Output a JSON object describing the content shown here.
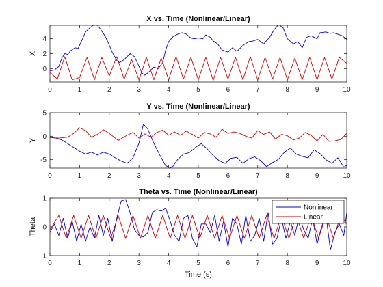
{
  "chart_data": [
    {
      "type": "line",
      "title": "X vs. Time (Nonlinear/Linear)",
      "xlabel": "",
      "ylabel": "X",
      "xlim": [
        0,
        10
      ],
      "ylim": [
        -1.8,
        5.8
      ],
      "xticks": [
        0,
        1,
        2,
        3,
        4,
        5,
        6,
        7,
        8,
        9,
        10
      ],
      "xtick_labels": [
        "0",
        "1",
        "2",
        "3",
        "4",
        "5",
        "6",
        "7",
        "8",
        "9",
        "10"
      ],
      "yticks": [
        0,
        2,
        4
      ],
      "ytick_labels": [
        "0",
        "2",
        "4"
      ],
      "grid": false,
      "series": [
        {
          "color": "#0000cc",
          "x": [
            0,
            0.15,
            0.3,
            0.4,
            0.5,
            0.6,
            0.7,
            0.85,
            0.95,
            1.1,
            1.2,
            1.35,
            1.5,
            1.6,
            1.7,
            1.85,
            1.95,
            2.1,
            2.25,
            2.35,
            2.5,
            2.7,
            2.85,
            3.0,
            3.1,
            3.2,
            3.35,
            3.5,
            3.65,
            3.8,
            3.9,
            4.0,
            4.15,
            4.3,
            4.45,
            4.6,
            4.75,
            4.85,
            5.0,
            5.15,
            5.25,
            5.4,
            5.5,
            5.65,
            5.8,
            6.0,
            6.15,
            6.3,
            6.5,
            6.7,
            6.85,
            7.0,
            7.2,
            7.4,
            7.55,
            7.7,
            7.85,
            8.0,
            8.2,
            8.35,
            8.5,
            8.65,
            8.8,
            9.0,
            9.1,
            9.3,
            9.45,
            9.55,
            9.7,
            9.85,
            10
          ],
          "y": [
            -0.3,
            -0.2,
            0.3,
            1.4,
            2.0,
            1.9,
            2.4,
            2.8,
            2.7,
            4.0,
            4.9,
            5.5,
            5.9,
            5.8,
            5.3,
            4.4,
            3.6,
            2.2,
            1.1,
            0.8,
            1.2,
            2.0,
            1.6,
            0.3,
            -0.6,
            -0.9,
            -0.4,
            0.2,
            0.0,
            0.8,
            2.5,
            3.6,
            4.3,
            4.6,
            4.8,
            4.6,
            4.1,
            4.0,
            4.1,
            4.0,
            4.5,
            4.2,
            3.7,
            3.3,
            2.5,
            2.2,
            2.8,
            2.3,
            3.1,
            3.6,
            3.7,
            3.9,
            3.3,
            4.2,
            5.2,
            5.9,
            5.5,
            4.0,
            3.3,
            3.6,
            2.8,
            4.2,
            4.4,
            4.0,
            4.8,
            4.9,
            4.7,
            4.8,
            4.6,
            4.4,
            3.9
          ]
        },
        {
          "color": "#cc0000",
          "x": [
            0,
            0.25,
            0.5,
            0.75,
            1.0,
            1.25,
            1.5,
            1.75,
            2.0,
            2.25,
            2.5,
            2.75,
            3.0,
            3.25,
            3.5,
            3.75,
            4.0,
            4.25,
            4.5,
            4.75,
            5.0,
            5.25,
            5.5,
            5.75,
            6.0,
            6.25,
            6.5,
            6.75,
            7.0,
            7.25,
            7.5,
            7.75,
            8.0,
            8.25,
            8.5,
            8.75,
            9.0,
            9.25,
            9.5,
            9.75,
            10
          ],
          "y": [
            -0.5,
            -1.4,
            1.6,
            -1.5,
            -1.2,
            1.5,
            -1.5,
            1.5,
            -1.0,
            1.6,
            -1.4,
            1.2,
            -1.5,
            1.5,
            -1.5,
            1.4,
            -1.5,
            1.6,
            -1.4,
            1.5,
            -1.5,
            1.5,
            -1.6,
            1.5,
            -1.4,
            1.5,
            -1.5,
            1.6,
            -1.5,
            1.5,
            -1.4,
            1.5,
            -1.5,
            1.4,
            -1.5,
            1.5,
            -1.5,
            1.5,
            -1.4,
            1.5,
            0.7
          ]
        }
      ]
    },
    {
      "type": "line",
      "title": "Y vs. Time (Nonlinear/Linear)",
      "xlabel": "",
      "ylabel": "Y",
      "xlim": [
        0,
        10
      ],
      "ylim": [
        -6.8,
        5
      ],
      "xticks": [
        0,
        1,
        2,
        3,
        4,
        5,
        6,
        7,
        8,
        9,
        10
      ],
      "xtick_labels": [
        "0",
        "1",
        "2",
        "3",
        "4",
        "5",
        "6",
        "7",
        "8",
        "9",
        "10"
      ],
      "yticks": [
        -5,
        0,
        5
      ],
      "ytick_labels": [
        "-5",
        "0",
        "5"
      ],
      "grid": false,
      "series": [
        {
          "color": "#0000cc",
          "x": [
            0,
            0.2,
            0.4,
            0.6,
            0.8,
            1.0,
            1.2,
            1.4,
            1.6,
            1.8,
            2.0,
            2.2,
            2.4,
            2.6,
            2.8,
            3.0,
            3.15,
            3.3,
            3.5,
            3.7,
            3.9,
            4.1,
            4.3,
            4.5,
            4.7,
            4.9,
            5.1,
            5.3,
            5.5,
            5.7,
            5.9,
            6.1,
            6.3,
            6.5,
            6.7,
            6.9,
            7.1,
            7.3,
            7.5,
            7.7,
            7.9,
            8.1,
            8.3,
            8.5,
            8.7,
            8.9,
            9.1,
            9.3,
            9.5,
            9.7,
            9.9,
            10
          ],
          "y": [
            -0.2,
            -0.4,
            -0.8,
            -1.6,
            -2.4,
            -3.2,
            -3.8,
            -3.4,
            -4.0,
            -3.4,
            -3.8,
            -4.6,
            -5.3,
            -5.8,
            -4.6,
            -1.5,
            2.6,
            1.5,
            -1.5,
            -4.0,
            -6.3,
            -6.8,
            -5.0,
            -3.8,
            -3.5,
            -2.4,
            -1.6,
            -2.7,
            -4.1,
            -5.2,
            -5.8,
            -4.7,
            -4.5,
            -5.8,
            -4.8,
            -4.4,
            -5.2,
            -6.5,
            -5.6,
            -4.9,
            -3.4,
            -2.5,
            -3.8,
            -4.3,
            -4.6,
            -2.9,
            -3.7,
            -5.0,
            -5.8,
            -4.6,
            -6.6,
            -6.2
          ]
        },
        {
          "color": "#cc0000",
          "x": [
            0,
            0.3,
            0.6,
            0.8,
            1.0,
            1.2,
            1.4,
            1.6,
            1.8,
            2.0,
            2.3,
            2.6,
            2.8,
            3.0,
            3.2,
            3.4,
            3.6,
            3.8,
            4.0,
            4.2,
            4.4,
            4.6,
            4.8,
            5.0,
            5.2,
            5.4,
            5.6,
            5.8,
            6.0,
            6.2,
            6.4,
            6.6,
            6.8,
            7.0,
            7.2,
            7.4,
            7.6,
            7.8,
            8.0,
            8.2,
            8.4,
            8.6,
            8.8,
            9.0,
            9.2,
            9.4,
            9.6,
            9.8,
            10
          ],
          "y": [
            -0.3,
            -0.4,
            -0.2,
            0.6,
            1.8,
            1.2,
            -0.2,
            0.4,
            1.4,
            0.6,
            -0.9,
            0.2,
            0.8,
            -0.4,
            0.5,
            -0.2,
            0.8,
            1.3,
            0.2,
            0.9,
            0.2,
            1.1,
            0.4,
            -0.4,
            0.8,
            0.5,
            -0.2,
            1.5,
            0.6,
            0.9,
            0.6,
            0.0,
            -0.4,
            1.2,
            0.4,
            0.9,
            -0.6,
            0.4,
            0.1,
            -0.8,
            -0.4,
            0.8,
            0.2,
            -1.0,
            0.4,
            -1.1,
            -1.0,
            -0.7,
            0.6
          ]
        }
      ]
    },
    {
      "type": "line",
      "title": "Theta vs. Time (Nonlinear/Linear)",
      "xlabel": "Time (s)",
      "ylabel": "Theta",
      "xlim": [
        0,
        10
      ],
      "ylim": [
        -1,
        1
      ],
      "xticks": [
        0,
        1,
        2,
        3,
        4,
        5,
        6,
        7,
        8,
        9,
        10
      ],
      "xtick_labels": [
        "0",
        "1",
        "2",
        "3",
        "4",
        "5",
        "6",
        "7",
        "8",
        "9",
        "10"
      ],
      "yticks": [
        -1,
        0,
        1
      ],
      "ytick_labels": [
        "-1",
        "0",
        "1"
      ],
      "grid": false,
      "legend": {
        "position": "top-right",
        "entries": [
          "Nonlinear",
          "Linear"
        ]
      },
      "series": [
        {
          "name": "Nonlinear",
          "color": "#0000cc",
          "x": [
            0,
            0.15,
            0.3,
            0.45,
            0.6,
            0.75,
            0.9,
            1.05,
            1.2,
            1.35,
            1.5,
            1.65,
            1.8,
            1.95,
            2.1,
            2.25,
            2.4,
            2.55,
            2.7,
            2.85,
            3.0,
            3.15,
            3.3,
            3.45,
            3.6,
            3.75,
            3.9,
            4.05,
            4.2,
            4.35,
            4.5,
            4.65,
            4.8,
            4.95,
            5.1,
            5.25,
            5.4,
            5.55,
            5.7,
            5.85,
            6.0,
            6.15,
            6.3,
            6.45,
            6.6,
            6.75,
            6.9,
            7.05,
            7.2,
            7.35,
            7.5,
            7.65,
            7.8,
            7.95,
            8.1,
            8.25,
            8.4,
            8.55,
            8.7,
            8.85,
            9.0,
            9.15,
            9.3,
            9.45,
            9.6,
            9.75,
            9.9,
            10
          ],
          "y": [
            -0.2,
            0.1,
            -0.3,
            0.3,
            -0.4,
            0.2,
            -0.5,
            0.1,
            -0.5,
            0.0,
            -0.4,
            0.4,
            -0.3,
            0.3,
            -0.5,
            0.3,
            0.9,
            0.95,
            0.5,
            -0.1,
            -0.3,
            -0.35,
            -0.2,
            0.5,
            0.6,
            0.55,
            0.65,
            0.2,
            -0.3,
            -0.5,
            0.3,
            0.4,
            -0.4,
            -0.7,
            0.1,
            0.1,
            -0.2,
            0.4,
            -0.5,
            0.2,
            -0.7,
            0.3,
            0.1,
            -0.6,
            0.4,
            -0.5,
            -0.3,
            0.3,
            -0.5,
            0.5,
            -0.6,
            -0.4,
            0.3,
            -0.4,
            0.2,
            -0.3,
            0.4,
            -0.1,
            -0.4,
            0.3,
            -0.6,
            0.0,
            0.4,
            -0.8,
            -0.2,
            0.1,
            -0.3,
            0.5
          ]
        },
        {
          "name": "Linear",
          "color": "#cc0000",
          "x": [
            0,
            0.3,
            0.55,
            0.8,
            1.05,
            1.3,
            1.55,
            1.8,
            2.05,
            2.3,
            2.55,
            2.8,
            3.05,
            3.3,
            3.55,
            3.8,
            4.05,
            4.3,
            4.55,
            4.8,
            5.05,
            5.3,
            5.55,
            5.8,
            6.05,
            6.3,
            6.55,
            6.8,
            7.05,
            7.3,
            7.55,
            7.8,
            8.05,
            8.3,
            8.55,
            8.8,
            9.05,
            9.3,
            9.55,
            9.8,
            10
          ],
          "y": [
            -0.1,
            0.4,
            -0.4,
            0.4,
            -0.4,
            0.4,
            -0.4,
            0.4,
            -0.4,
            0.4,
            -0.4,
            0.4,
            -0.4,
            0.4,
            -0.4,
            0.4,
            -0.4,
            0.4,
            -0.4,
            0.4,
            -0.4,
            0.4,
            -0.4,
            0.4,
            -0.4,
            0.4,
            -0.4,
            0.4,
            -0.4,
            0.4,
            -0.4,
            0.4,
            -0.4,
            0.4,
            -0.4,
            0.4,
            -0.4,
            0.4,
            -0.4,
            0.4,
            0.1
          ]
        }
      ]
    }
  ]
}
